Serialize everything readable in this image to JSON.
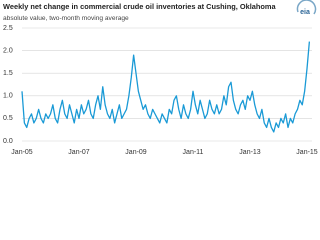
{
  "chart_data": {
    "type": "line",
    "title": "Weekly net change in commercial crude oil inventories at Cushing, Oklahoma",
    "subtitle": "absolute value, two-month moving average",
    "logo": "eia",
    "categories": [
      "Jan-05",
      null,
      null,
      null,
      null,
      null,
      null,
      null,
      null,
      null,
      null,
      null,
      null,
      null,
      null,
      null,
      null,
      null,
      null,
      null,
      null,
      null,
      null,
      null,
      "Jan-07",
      null,
      null,
      null,
      null,
      null,
      null,
      null,
      null,
      null,
      null,
      null,
      null,
      null,
      null,
      null,
      null,
      null,
      null,
      null,
      null,
      null,
      null,
      null,
      "Jan-09",
      null,
      null,
      null,
      null,
      null,
      null,
      null,
      null,
      null,
      null,
      null,
      null,
      null,
      null,
      null,
      null,
      null,
      null,
      null,
      null,
      null,
      null,
      null,
      "Jan-11",
      null,
      null,
      null,
      null,
      null,
      null,
      null,
      null,
      null,
      null,
      null,
      null,
      null,
      null,
      null,
      null,
      null,
      null,
      null,
      null,
      null,
      null,
      null,
      "Jan-13",
      null,
      null,
      null,
      null,
      null,
      null,
      null,
      null,
      null,
      null,
      null,
      null,
      null,
      null,
      null,
      null,
      null,
      null,
      null,
      null,
      null,
      null,
      null,
      "Jan-15",
      null
    ],
    "values": [
      1.1,
      0.4,
      0.3,
      0.5,
      0.6,
      0.4,
      0.5,
      0.7,
      0.5,
      0.4,
      0.6,
      0.5,
      0.6,
      0.8,
      0.5,
      0.4,
      0.7,
      0.9,
      0.6,
      0.5,
      0.8,
      0.6,
      0.4,
      0.7,
      0.5,
      0.8,
      0.6,
      0.7,
      0.9,
      0.6,
      0.5,
      0.8,
      1.0,
      0.7,
      1.2,
      0.8,
      0.6,
      0.5,
      0.7,
      0.4,
      0.6,
      0.8,
      0.5,
      0.6,
      0.7,
      1.0,
      1.4,
      1.9,
      1.5,
      1.1,
      0.9,
      0.7,
      0.8,
      0.6,
      0.5,
      0.7,
      0.6,
      0.5,
      0.4,
      0.6,
      0.5,
      0.4,
      0.7,
      0.6,
      0.9,
      1.0,
      0.7,
      0.5,
      0.8,
      0.6,
      0.5,
      0.7,
      1.1,
      0.8,
      0.6,
      0.9,
      0.7,
      0.5,
      0.6,
      0.9,
      0.7,
      0.6,
      0.8,
      0.6,
      0.7,
      1.0,
      0.8,
      1.2,
      1.3,
      0.9,
      0.7,
      0.6,
      0.8,
      0.9,
      0.7,
      1.0,
      0.9,
      1.1,
      0.8,
      0.6,
      0.5,
      0.7,
      0.4,
      0.3,
      0.5,
      0.3,
      0.2,
      0.4,
      0.3,
      0.5,
      0.4,
      0.6,
      0.3,
      0.5,
      0.4,
      0.6,
      0.7,
      0.9,
      0.8,
      1.1,
      1.6,
      2.2
    ],
    "color": "#1a9ad6",
    "ylim": [
      0,
      2.5
    ],
    "yticks": [
      {
        "value": 0,
        "label": "0.0"
      },
      0.5,
      {
        "value": 1,
        "label": "1.0"
      },
      1.5,
      {
        "value": 2,
        "label": "2.0"
      },
      2.5
    ],
    "grid": true
  }
}
